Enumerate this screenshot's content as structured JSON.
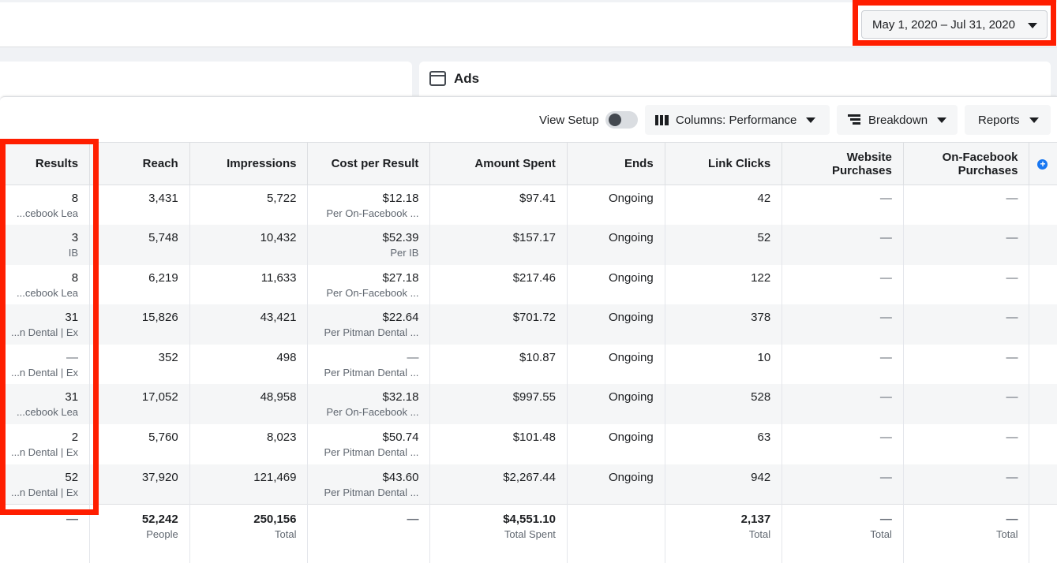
{
  "date_range": {
    "label": "May 1, 2020 – Jul 31, 2020"
  },
  "ads_panel": {
    "title": "Ads"
  },
  "toolbar": {
    "view_setup": "View Setup",
    "columns": "Columns: Performance",
    "breakdown": "Breakdown",
    "reports": "Reports"
  },
  "table": {
    "headers": {
      "results": "Results",
      "reach": "Reach",
      "impressions": "Impressions",
      "cost": "Cost per Result",
      "spent": "Amount Spent",
      "ends": "Ends",
      "clicks": "Link Clicks",
      "website": "Website Purchases",
      "onfb": "On-Facebook Purchases",
      "add": "+"
    },
    "rows": [
      {
        "results": "8",
        "results_sub": "cebook Lea...",
        "reach": "3,431",
        "impressions": "5,722",
        "cost": "$12.18",
        "cost_sub": "Per On-Facebook ...",
        "spent": "$97.41",
        "ends": "Ongoing",
        "clicks": "42",
        "website": "—",
        "onfb": "—"
      },
      {
        "results": "3",
        "results_sub": "IB",
        "reach": "5,748",
        "impressions": "10,432",
        "cost": "$52.39",
        "cost_sub": "Per IB",
        "spent": "$157.17",
        "ends": "Ongoing",
        "clicks": "52",
        "website": "—",
        "onfb": "—"
      },
      {
        "results": "8",
        "results_sub": "cebook Lea...",
        "reach": "6,219",
        "impressions": "11,633",
        "cost": "$27.18",
        "cost_sub": "Per On-Facebook ...",
        "spent": "$217.46",
        "ends": "Ongoing",
        "clicks": "122",
        "website": "—",
        "onfb": "—"
      },
      {
        "results": "31",
        "results_sub": "n Dental | Ex...",
        "reach": "15,826",
        "impressions": "43,421",
        "cost": "$22.64",
        "cost_sub": "Per Pitman Dental ...",
        "spent": "$701.72",
        "ends": "Ongoing",
        "clicks": "378",
        "website": "—",
        "onfb": "—"
      },
      {
        "results": "—",
        "results_sub": "n Dental | Ex...",
        "reach": "352",
        "impressions": "498",
        "cost": "—",
        "cost_sub": "Per Pitman Dental ...",
        "spent": "$10.87",
        "ends": "Ongoing",
        "clicks": "10",
        "website": "—",
        "onfb": "—"
      },
      {
        "results": "31",
        "results_sub": "cebook Lea...",
        "reach": "17,052",
        "impressions": "48,958",
        "cost": "$32.18",
        "cost_sub": "Per On-Facebook ...",
        "spent": "$997.55",
        "ends": "Ongoing",
        "clicks": "528",
        "website": "—",
        "onfb": "—"
      },
      {
        "results": "2",
        "results_sub": "n Dental | Ex...",
        "reach": "5,760",
        "impressions": "8,023",
        "cost": "$50.74",
        "cost_sub": "Per Pitman Dental ...",
        "spent": "$101.48",
        "ends": "Ongoing",
        "clicks": "63",
        "website": "—",
        "onfb": "—"
      },
      {
        "results": "52",
        "results_sub": "n Dental | Ex...",
        "reach": "37,920",
        "impressions": "121,469",
        "cost": "$43.60",
        "cost_sub": "Per Pitman Dental ...",
        "spent": "$2,267.44",
        "ends": "Ongoing",
        "clicks": "942",
        "website": "—",
        "onfb": "—"
      }
    ],
    "totals": {
      "results": "—",
      "reach": "52,242",
      "reach_sub": "People",
      "impressions": "250,156",
      "impressions_sub": "Total",
      "cost": "—",
      "spent": "$4,551.10",
      "spent_sub": "Total Spent",
      "clicks": "2,137",
      "clicks_sub": "Total",
      "website": "—",
      "website_sub": "Total",
      "onfb": "—",
      "onfb_sub": "Total"
    }
  },
  "colors": {
    "highlight": "#ff1e00",
    "accent": "#1877f2"
  }
}
